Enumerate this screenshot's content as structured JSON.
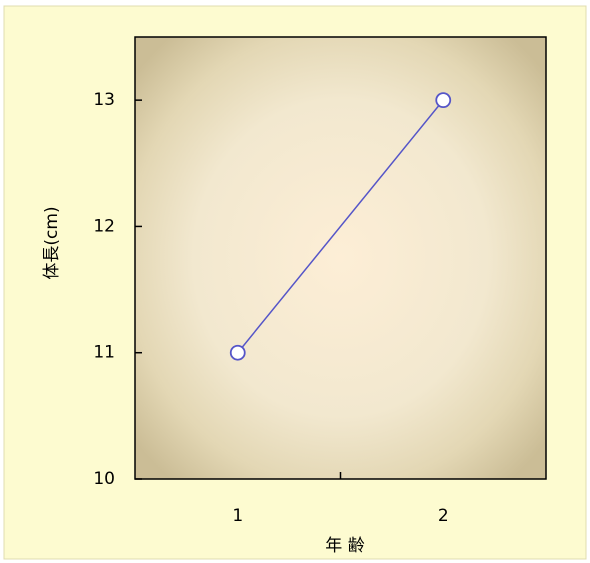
{
  "chart_data": {
    "type": "line",
    "x_label": "年 齢",
    "y_label": "体長(cm)",
    "categories": [
      "1",
      "2"
    ],
    "values": [
      11,
      13
    ],
    "color": "#5555c8",
    "ylim": [
      10,
      13.5
    ],
    "yticks": [
      10,
      11,
      12,
      13
    ]
  }
}
